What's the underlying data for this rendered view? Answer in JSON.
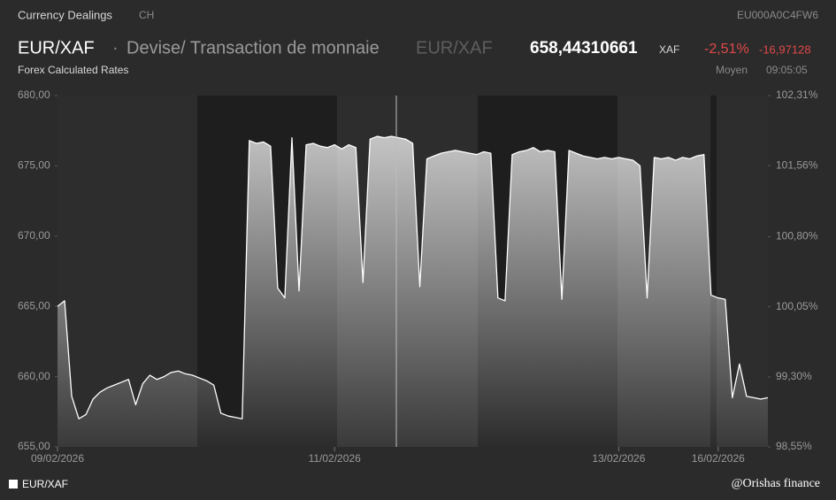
{
  "header": {
    "section": "Currency Dealings",
    "country": "CH",
    "isin": "EU000A0C4FW6",
    "symbol": "EUR/XAF",
    "description": "Devise/ Transaction de monnaie",
    "symbol_alt": "EUR/XAF",
    "price": "658,44310661",
    "currency": "XAF",
    "change_pct": "-2,51%",
    "change_abs": "-16,97128",
    "source": "Forex Calculated Rates",
    "price_type": "Moyen",
    "time": "09:05:05",
    "credit": "@Orishas finance"
  },
  "chart_data": {
    "type": "area",
    "categories": [
      "09/02/2026",
      null,
      null,
      null,
      null,
      null,
      null,
      null,
      null,
      null,
      null,
      null,
      null,
      null,
      null,
      null,
      null,
      null,
      null,
      null,
      null,
      null,
      null,
      null,
      null,
      null,
      null,
      null,
      null,
      null,
      null,
      null,
      null,
      null,
      null,
      null,
      null,
      null,
      null,
      "11/02/2026",
      null,
      null,
      null,
      null,
      null,
      null,
      null,
      null,
      null,
      null,
      null,
      null,
      null,
      null,
      null,
      null,
      null,
      null,
      null,
      null,
      null,
      null,
      null,
      null,
      null,
      null,
      null,
      null,
      null,
      null,
      null,
      null,
      null,
      null,
      null,
      null,
      null,
      null,
      null,
      "13/02/2026",
      null,
      null,
      null,
      null,
      null,
      null,
      null,
      null,
      null,
      null,
      null,
      null,
      null,
      "16/02/2026",
      null,
      null,
      null,
      null,
      null,
      null,
      null
    ],
    "series": [
      {
        "name": "EUR/XAF",
        "color": "#ffffff",
        "values": [
          665.0,
          665.4,
          658.6,
          657.0,
          657.3,
          658.4,
          658.9,
          659.2,
          659.4,
          659.6,
          659.8,
          658.0,
          659.5,
          660.1,
          659.8,
          660.0,
          660.3,
          660.4,
          660.2,
          660.1,
          659.9,
          659.7,
          659.4,
          657.4,
          657.2,
          657.1,
          657.0,
          676.8,
          676.6,
          676.7,
          676.4,
          666.3,
          665.6,
          677.0,
          666.1,
          676.5,
          676.6,
          676.4,
          676.3,
          676.5,
          676.2,
          676.5,
          676.3,
          666.7,
          676.9,
          677.1,
          677.0,
          677.1,
          677.0,
          676.9,
          676.6,
          666.4,
          675.5,
          675.7,
          675.9,
          676.0,
          676.1,
          676.0,
          675.9,
          675.8,
          676.0,
          675.9,
          665.6,
          665.4,
          675.8,
          676.0,
          676.1,
          676.3,
          676.0,
          676.1,
          676.0,
          665.5,
          676.1,
          675.9,
          675.7,
          675.6,
          675.5,
          675.6,
          675.5,
          675.6,
          675.5,
          675.4,
          675.0,
          665.6,
          675.6,
          675.5,
          675.6,
          675.4,
          675.6,
          675.5,
          675.7,
          675.8,
          665.8,
          665.6,
          665.5,
          658.5,
          660.9,
          658.6,
          658.5,
          658.4,
          658.5
        ]
      }
    ],
    "ylim": [
      655,
      680
    ],
    "yticks": [
      {
        "value": 655,
        "label": "655,00"
      },
      {
        "value": 660,
        "label": "660,00"
      },
      {
        "value": 665,
        "label": "665,00"
      },
      {
        "value": 670,
        "label": "670,00"
      },
      {
        "value": 675,
        "label": "675,00"
      },
      {
        "value": 680,
        "label": "680,00"
      }
    ],
    "y2lim": [
      98.55,
      102.31
    ],
    "y2ticks": [
      {
        "value": 98.55,
        "label": "98,55%"
      },
      {
        "value": 99.3,
        "label": "99,30%"
      },
      {
        "value": 100.05,
        "label": "100,05%"
      },
      {
        "value": 100.8,
        "label": "100,80%"
      },
      {
        "value": 101.56,
        "label": "101,56%"
      },
      {
        "value": 102.31,
        "label": "102,31%"
      }
    ],
    "grid": false
  }
}
